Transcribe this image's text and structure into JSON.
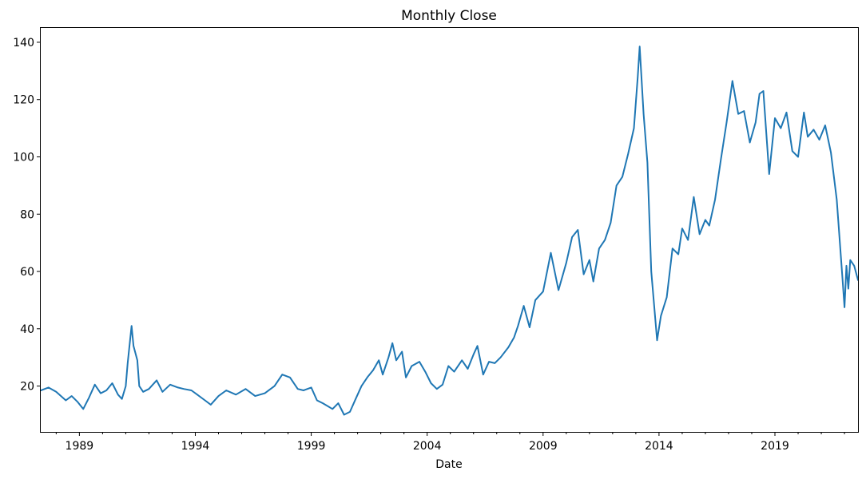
{
  "chart_data": {
    "type": "line",
    "title": "Monthly Close",
    "xlabel": "Date",
    "ylabel": "",
    "grid": false,
    "legend": false,
    "x_range": [
      "1987-05",
      "2022-08"
    ],
    "ylim": [
      4,
      145
    ],
    "x_ticks": [
      "1989",
      "1994",
      "1999",
      "2004",
      "2009",
      "2014",
      "2019"
    ],
    "y_ticks": [
      20,
      40,
      60,
      80,
      100,
      120,
      140
    ],
    "series": [
      {
        "color": "#1f77b4",
        "points": [
          [
            "1987-05",
            18.5
          ],
          [
            "1987-09",
            19.5
          ],
          [
            "1988-01",
            18
          ],
          [
            "1988-06",
            15
          ],
          [
            "1988-09",
            16.5
          ],
          [
            "1988-12",
            14.5
          ],
          [
            "1989-03",
            12
          ],
          [
            "1989-06",
            16
          ],
          [
            "1989-09",
            20.5
          ],
          [
            "1989-12",
            17.5
          ],
          [
            "1990-03",
            18.5
          ],
          [
            "1990-06",
            21
          ],
          [
            "1990-09",
            17
          ],
          [
            "1990-11",
            15.5
          ],
          [
            "1991-01",
            20
          ],
          [
            "1991-02",
            28
          ],
          [
            "1991-04",
            41
          ],
          [
            "1991-05",
            34
          ],
          [
            "1991-07",
            29
          ],
          [
            "1991-08",
            20
          ],
          [
            "1991-10",
            18
          ],
          [
            "1992-01",
            19
          ],
          [
            "1992-05",
            22
          ],
          [
            "1992-08",
            18
          ],
          [
            "1992-12",
            20.5
          ],
          [
            "1993-04",
            19.5
          ],
          [
            "1993-07",
            19
          ],
          [
            "1993-11",
            18.5
          ],
          [
            "1994-02",
            17
          ],
          [
            "1994-06",
            15
          ],
          [
            "1994-09",
            13.5
          ],
          [
            "1995-01",
            16.5
          ],
          [
            "1995-05",
            18.5
          ],
          [
            "1995-10",
            17
          ],
          [
            "1996-03",
            19
          ],
          [
            "1996-08",
            16.5
          ],
          [
            "1997-01",
            17.5
          ],
          [
            "1997-06",
            20
          ],
          [
            "1997-10",
            24
          ],
          [
            "1998-02",
            23
          ],
          [
            "1998-06",
            19
          ],
          [
            "1998-09",
            18.5
          ],
          [
            "1999-01",
            19.5
          ],
          [
            "1999-04",
            15
          ],
          [
            "1999-07",
            14
          ],
          [
            "1999-12",
            12
          ],
          [
            "2000-03",
            14
          ],
          [
            "2000-06",
            10
          ],
          [
            "2000-09",
            11
          ],
          [
            "2000-12",
            15.5
          ],
          [
            "2001-03",
            20
          ],
          [
            "2001-06",
            23
          ],
          [
            "2001-09",
            25.5
          ],
          [
            "2001-12",
            29
          ],
          [
            "2002-02",
            24
          ],
          [
            "2002-05",
            30
          ],
          [
            "2002-07",
            35
          ],
          [
            "2002-09",
            29
          ],
          [
            "2002-12",
            32
          ],
          [
            "2003-02",
            23
          ],
          [
            "2003-05",
            27
          ],
          [
            "2003-09",
            28.5
          ],
          [
            "2003-12",
            25
          ],
          [
            "2004-03",
            21
          ],
          [
            "2004-06",
            19
          ],
          [
            "2004-09",
            20.5
          ],
          [
            "2004-12",
            27
          ],
          [
            "2005-03",
            25
          ],
          [
            "2005-07",
            29
          ],
          [
            "2005-10",
            26
          ],
          [
            "2006-01",
            31
          ],
          [
            "2006-03",
            34
          ],
          [
            "2006-06",
            24
          ],
          [
            "2006-09",
            28.5
          ],
          [
            "2006-12",
            28
          ],
          [
            "2007-03",
            30
          ],
          [
            "2007-07",
            33.5
          ],
          [
            "2007-10",
            37
          ],
          [
            "2007-12",
            41
          ],
          [
            "2008-03",
            48
          ],
          [
            "2008-06",
            40.5
          ],
          [
            "2008-09",
            50
          ],
          [
            "2009-01",
            53
          ],
          [
            "2009-05",
            66.5
          ],
          [
            "2009-09",
            53.5
          ],
          [
            "2010-01",
            63
          ],
          [
            "2010-04",
            72
          ],
          [
            "2010-07",
            74.5
          ],
          [
            "2010-10",
            59
          ],
          [
            "2011-01",
            64
          ],
          [
            "2011-03",
            56.5
          ],
          [
            "2011-06",
            68
          ],
          [
            "2011-09",
            71
          ],
          [
            "2011-12",
            77
          ],
          [
            "2012-03",
            90
          ],
          [
            "2012-06",
            93
          ],
          [
            "2012-09",
            101
          ],
          [
            "2012-12",
            110
          ],
          [
            "2013-02",
            128
          ],
          [
            "2013-03",
            138.5
          ],
          [
            "2013-05",
            115
          ],
          [
            "2013-07",
            98
          ],
          [
            "2013-09",
            60
          ],
          [
            "2013-12",
            36
          ],
          [
            "2014-02",
            44.5
          ],
          [
            "2014-05",
            51
          ],
          [
            "2014-08",
            68
          ],
          [
            "2014-11",
            66
          ],
          [
            "2015-01",
            75
          ],
          [
            "2015-04",
            71
          ],
          [
            "2015-07",
            86
          ],
          [
            "2015-10",
            73
          ],
          [
            "2016-01",
            78
          ],
          [
            "2016-03",
            76
          ],
          [
            "2016-06",
            85
          ],
          [
            "2016-09",
            99
          ],
          [
            "2016-12",
            112
          ],
          [
            "2017-03",
            126.5
          ],
          [
            "2017-06",
            115
          ],
          [
            "2017-09",
            116
          ],
          [
            "2017-12",
            105
          ],
          [
            "2018-03",
            112
          ],
          [
            "2018-05",
            122
          ],
          [
            "2018-07",
            123
          ],
          [
            "2018-10",
            94
          ],
          [
            "2019-01",
            113.5
          ],
          [
            "2019-04",
            110
          ],
          [
            "2019-07",
            115.5
          ],
          [
            "2019-10",
            102
          ],
          [
            "2020-01",
            100
          ],
          [
            "2020-04",
            115.5
          ],
          [
            "2020-06",
            107
          ],
          [
            "2020-09",
            109.5
          ],
          [
            "2020-12",
            106
          ],
          [
            "2021-03",
            111
          ],
          [
            "2021-06",
            101.5
          ],
          [
            "2021-09",
            85
          ],
          [
            "2021-12",
            57
          ],
          [
            "2022-01",
            47.5
          ],
          [
            "2022-02",
            62
          ],
          [
            "2022-03",
            54
          ],
          [
            "2022-04",
            64
          ],
          [
            "2022-06",
            62
          ],
          [
            "2022-08",
            57
          ]
        ]
      }
    ]
  }
}
